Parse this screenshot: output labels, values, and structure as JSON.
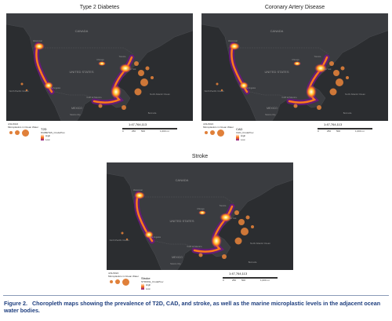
{
  "figure": {
    "caption_label": "Figure 2.",
    "caption_text": "Choropleth maps showing the prevalence of T2D, CAD, and stroke, as well as the marine microplastic levels in the adjacent ocean water bodies."
  },
  "panels": [
    {
      "title": "Type 2 Diabetes",
      "date": "4/11/2024",
      "legend_title": "Microplastics in Ocean Water",
      "layer_label": "T2D",
      "field_label": "DIABETES_CrudePrev",
      "scale_text": "1:47,764,113",
      "ticks": [
        "0",
        "250",
        "500",
        "1,000 mi"
      ]
    },
    {
      "title": "Coronary Artery Disease",
      "date": "4/11/2024",
      "legend_title": "Microplastics in Ocean Water",
      "layer_label": "CAD",
      "field_label": "CHD_CrudePrev",
      "scale_text": "1:47,764,113",
      "ticks": [
        "0",
        "250",
        "500",
        "1,000 mi"
      ]
    },
    {
      "title": "Stroke",
      "date": "4/11/2024",
      "legend_title": "Microplastics in Ocean Water",
      "layer_label": "Stroke",
      "field_label": "STROKE_CrudePrev",
      "scale_text": "1:47,764,113",
      "ticks": [
        "0",
        "250",
        "500",
        "1,000 mi"
      ]
    }
  ],
  "map_labels": {
    "canada": "CANADA",
    "usa": "UNITED STATES",
    "mexico": "MEXICO",
    "gulf": "Gulf of Mexico",
    "north_pacific": "North Pacific Ocean",
    "north_atlantic": "North Atlantic Ocean",
    "vancouver": "Vancouver",
    "los_angeles": "Los Angeles",
    "chicago": "Chicago",
    "toronto": "Toronto",
    "new_york": "New York",
    "mexico_city": "Mexico City",
    "bermuda": "Bermuda"
  },
  "legend_scale": {
    "high": "High",
    "low": "Low"
  },
  "colors": {
    "map_background": "#2b2d30",
    "land": "#3a3c40",
    "hotspot_high": "#ffffff",
    "hotspot_mid": "#ff7a1a",
    "hotspot_low": "#8b1a8c",
    "microplastic_bubble": "#e0803a",
    "caption": "#1f3f7f"
  }
}
